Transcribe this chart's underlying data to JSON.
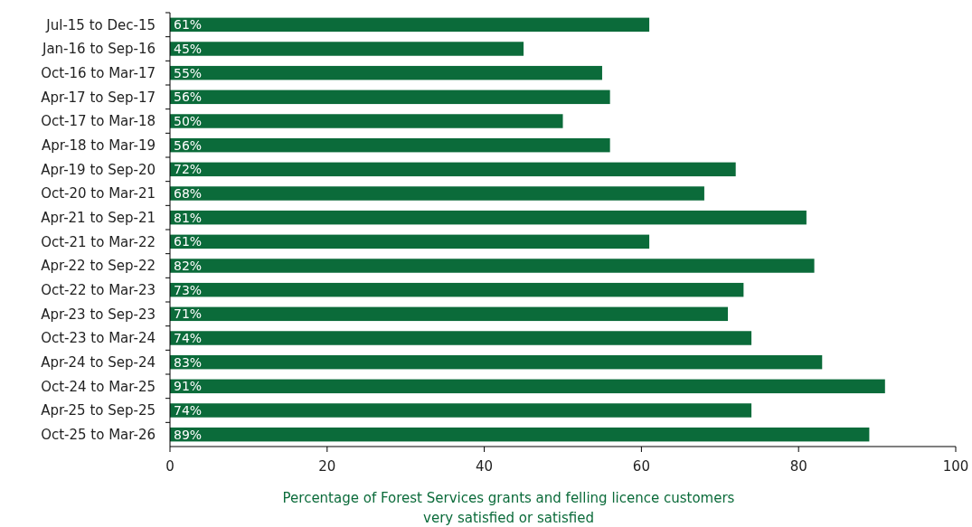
{
  "chart_data": {
    "type": "bar",
    "orientation": "horizontal",
    "xlabel": "Percentage of Forest Services grants and felling licence customers\nvery satisfied or satisfied",
    "categories": [
      "Jul-15 to Dec-15",
      "Jan-16 to Sep-16",
      "Oct-16 to Mar-17",
      "Apr-17 to Sep-17",
      "Oct-17 to Mar-18",
      "Apr-18 to Mar-19",
      "Apr-19 to Sep-20",
      "Oct-20 to Mar-21",
      "Apr-21 to Sep-21",
      "Oct-21 to Mar-22",
      "Apr-22 to Sep-22",
      "Oct-22 to Mar-23",
      "Apr-23 to Sep-23",
      "Oct-23 to Mar-24",
      "Apr-24 to Sep-24",
      "Oct-24 to Mar-25",
      "Apr-25 to Sep-25",
      "Oct-25 to Mar-26"
    ],
    "values": [
      61,
      45,
      55,
      56,
      50,
      56,
      72,
      68,
      81,
      61,
      82,
      73,
      71,
      74,
      83,
      91,
      74,
      89
    ],
    "value_labels": [
      "61%",
      "45%",
      "55%",
      "56%",
      "50%",
      "56%",
      "72%",
      "68%",
      "81%",
      "61%",
      "82%",
      "73%",
      "71%",
      "74%",
      "83%",
      "91%",
      "74%",
      "89%"
    ],
    "color": "#0b6b3a",
    "xlim": [
      0,
      100
    ],
    "xticks": [
      0,
      20,
      40,
      60,
      80,
      100
    ],
    "grid": false
  }
}
